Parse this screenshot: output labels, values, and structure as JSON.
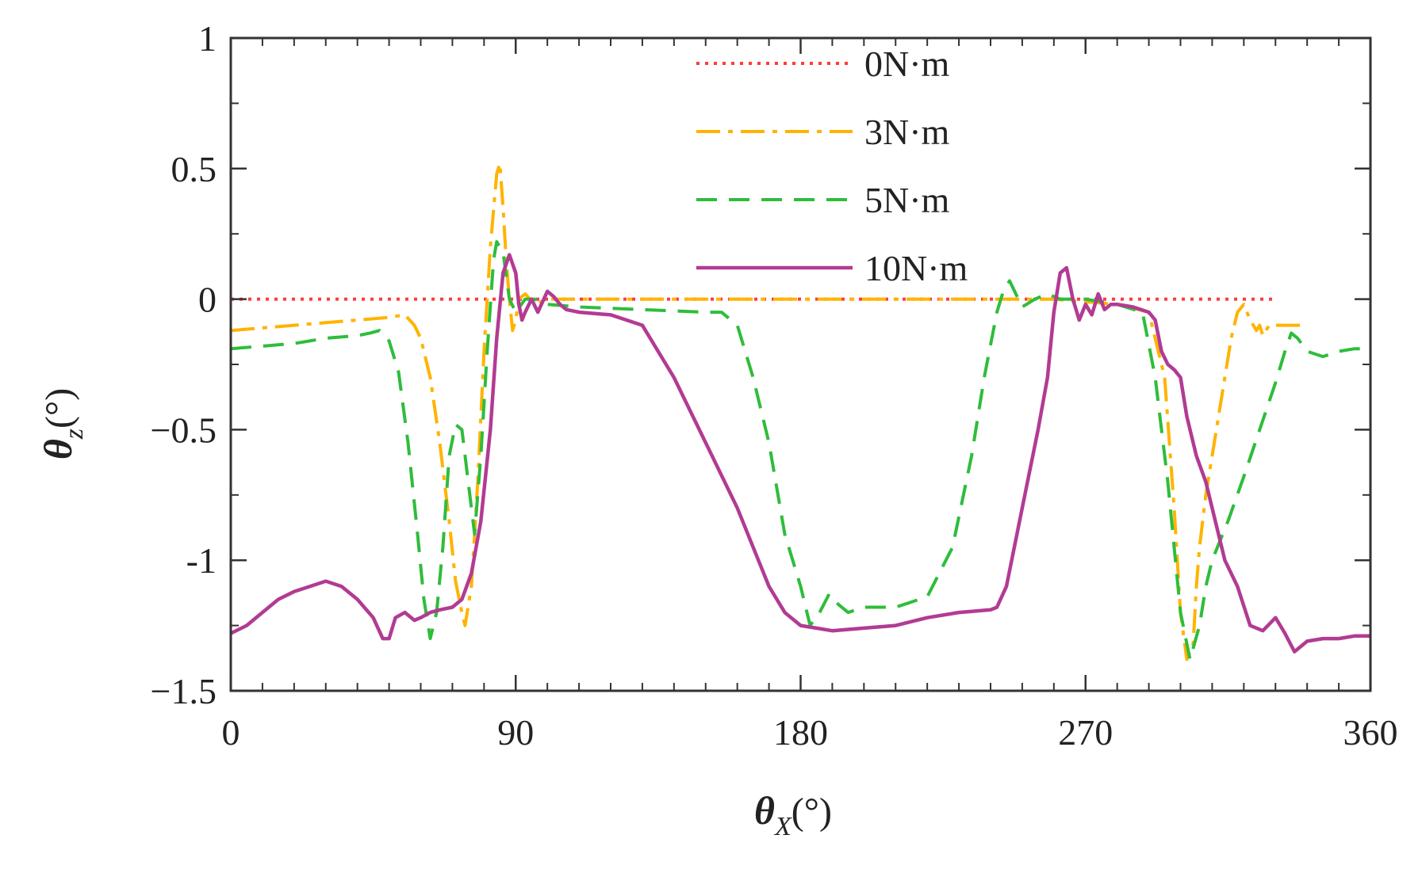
{
  "chart_data": {
    "type": "line",
    "title": "",
    "xlabel": {
      "symbol": "θ",
      "subscript": "X",
      "unit": "(°)"
    },
    "ylabel": {
      "symbol": "θ",
      "subscript": "z",
      "unit": "(°)"
    },
    "xlim": [
      0,
      360
    ],
    "ylim": [
      -1.5,
      1
    ],
    "xticks": [
      0,
      90,
      180,
      270,
      360
    ],
    "xtick_labels": [
      "0",
      "90",
      "180",
      "270",
      "360"
    ],
    "yticks": [
      1,
      0.5,
      0,
      -0.5,
      -1,
      -1.5
    ],
    "ytick_labels": [
      "1",
      "0.5",
      "0",
      "−0.5",
      "-1",
      "−1.5"
    ],
    "grid": false,
    "legend_position": "top-right",
    "series": [
      {
        "name": "0N·m",
        "color": "#ff3b3b",
        "style": "dotted",
        "x": [
          0,
          330
        ],
        "y": [
          0,
          0
        ]
      },
      {
        "name": "3N·m",
        "color": "#ffb300",
        "style": "dash-dot",
        "x": [
          0,
          10,
          20,
          30,
          40,
          50,
          55,
          58,
          60,
          63,
          66,
          69,
          71,
          73,
          74,
          76,
          78,
          80,
          82,
          84,
          85,
          86,
          87,
          88,
          89,
          90,
          91,
          93,
          96,
          100,
          110,
          130,
          150,
          180,
          210,
          240,
          260,
          280,
          290,
          295,
          298,
          300,
          302,
          304,
          305,
          306,
          307,
          308,
          310,
          312,
          314,
          316,
          318,
          320,
          322,
          324,
          325,
          326,
          328,
          330,
          335,
          340
        ],
        "y": [
          -0.12,
          -0.11,
          -0.1,
          -0.09,
          -0.08,
          -0.07,
          -0.06,
          -0.1,
          -0.15,
          -0.3,
          -0.55,
          -0.85,
          -1.08,
          -1.2,
          -1.25,
          -1.1,
          -0.7,
          -0.2,
          0.2,
          0.48,
          0.52,
          0.35,
          0.15,
          0.0,
          -0.12,
          -0.08,
          0.0,
          0.02,
          -0.02,
          0.0,
          0.0,
          0.0,
          0.0,
          0.0,
          0.0,
          0.0,
          0.0,
          -0.02,
          -0.05,
          -0.3,
          -0.8,
          -1.2,
          -1.38,
          -1.32,
          -1.1,
          -0.95,
          -0.85,
          -0.75,
          -0.6,
          -0.45,
          -0.3,
          -0.15,
          -0.05,
          -0.02,
          -0.08,
          -0.12,
          -0.1,
          -0.14,
          -0.1,
          -0.1,
          -0.1,
          -0.1
        ]
      },
      {
        "name": "5N·m",
        "color": "#2ebd3b",
        "style": "dashed",
        "x": [
          0,
          10,
          20,
          30,
          40,
          44,
          47,
          50,
          53,
          56,
          59,
          61,
          63,
          65,
          67,
          69,
          71,
          73,
          75,
          77,
          79,
          81,
          83,
          84,
          86,
          88,
          90,
          93,
          96,
          100,
          110,
          130,
          150,
          155,
          160,
          165,
          170,
          175,
          180,
          183,
          186,
          189,
          192,
          195,
          200,
          210,
          220,
          228,
          234,
          238,
          242,
          244,
          246,
          248,
          250,
          254,
          258,
          262,
          266,
          270,
          280,
          288,
          292,
          296,
          300,
          303,
          306,
          308,
          310,
          315,
          320,
          325,
          330,
          333,
          335,
          337,
          340,
          345,
          350,
          355,
          360
        ],
        "y": [
          -0.19,
          -0.18,
          -0.17,
          -0.15,
          -0.14,
          -0.13,
          -0.12,
          -0.16,
          -0.28,
          -0.55,
          -0.9,
          -1.15,
          -1.3,
          -1.2,
          -0.95,
          -0.6,
          -0.48,
          -0.5,
          -0.7,
          -0.9,
          -0.6,
          -0.2,
          0.15,
          0.22,
          0.18,
          0.0,
          -0.05,
          0.0,
          0.0,
          -0.02,
          -0.03,
          -0.04,
          -0.05,
          -0.05,
          -0.1,
          -0.3,
          -0.55,
          -0.9,
          -1.1,
          -1.25,
          -1.2,
          -1.13,
          -1.17,
          -1.2,
          -1.18,
          -1.18,
          -1.14,
          -0.95,
          -0.6,
          -0.3,
          -0.05,
          0.03,
          0.07,
          0.02,
          -0.03,
          0.0,
          0.02,
          0.0,
          0.0,
          0.0,
          -0.02,
          -0.05,
          -0.3,
          -0.7,
          -1.2,
          -1.38,
          -1.25,
          -1.1,
          -1.0,
          -0.85,
          -0.68,
          -0.5,
          -0.32,
          -0.2,
          -0.13,
          -0.15,
          -0.2,
          -0.22,
          -0.2,
          -0.19,
          -0.19
        ]
      },
      {
        "name": "10N·m",
        "color": "#b23b93",
        "style": "solid",
        "x": [
          0,
          5,
          10,
          15,
          20,
          25,
          30,
          35,
          40,
          45,
          48,
          50,
          52,
          55,
          58,
          60,
          63,
          66,
          70,
          73,
          76,
          79,
          82,
          84,
          86,
          88,
          90,
          91,
          92,
          93,
          95,
          97,
          100,
          102,
          104,
          106,
          110,
          120,
          130,
          140,
          150,
          160,
          165,
          170,
          175,
          180,
          185,
          190,
          200,
          210,
          220,
          230,
          240,
          242,
          245,
          250,
          255,
          258,
          260,
          262,
          264,
          266,
          268,
          270,
          272,
          274,
          276,
          278,
          280,
          285,
          290,
          292,
          294,
          296,
          298,
          300,
          302,
          305,
          308,
          311,
          314,
          318,
          322,
          326,
          330,
          333,
          336,
          340,
          345,
          350,
          355,
          360
        ],
        "y": [
          -1.28,
          -1.25,
          -1.2,
          -1.15,
          -1.12,
          -1.1,
          -1.08,
          -1.1,
          -1.15,
          -1.22,
          -1.3,
          -1.3,
          -1.22,
          -1.2,
          -1.23,
          -1.22,
          -1.2,
          -1.19,
          -1.18,
          -1.15,
          -1.05,
          -0.85,
          -0.5,
          -0.15,
          0.1,
          0.17,
          0.1,
          -0.02,
          -0.08,
          -0.05,
          0.0,
          -0.05,
          0.03,
          0.01,
          -0.02,
          -0.04,
          -0.05,
          -0.06,
          -0.1,
          -0.3,
          -0.55,
          -0.8,
          -0.95,
          -1.1,
          -1.2,
          -1.25,
          -1.26,
          -1.27,
          -1.26,
          -1.25,
          -1.22,
          -1.2,
          -1.19,
          -1.18,
          -1.1,
          -0.8,
          -0.5,
          -0.3,
          -0.05,
          0.1,
          0.12,
          0.0,
          -0.08,
          -0.02,
          -0.06,
          0.02,
          -0.04,
          -0.02,
          -0.02,
          -0.03,
          -0.05,
          -0.08,
          -0.2,
          -0.25,
          -0.27,
          -0.3,
          -0.45,
          -0.6,
          -0.7,
          -0.85,
          -1.0,
          -1.1,
          -1.25,
          -1.27,
          -1.22,
          -1.28,
          -1.35,
          -1.31,
          -1.3,
          -1.3,
          -1.29,
          -1.29
        ]
      }
    ]
  }
}
